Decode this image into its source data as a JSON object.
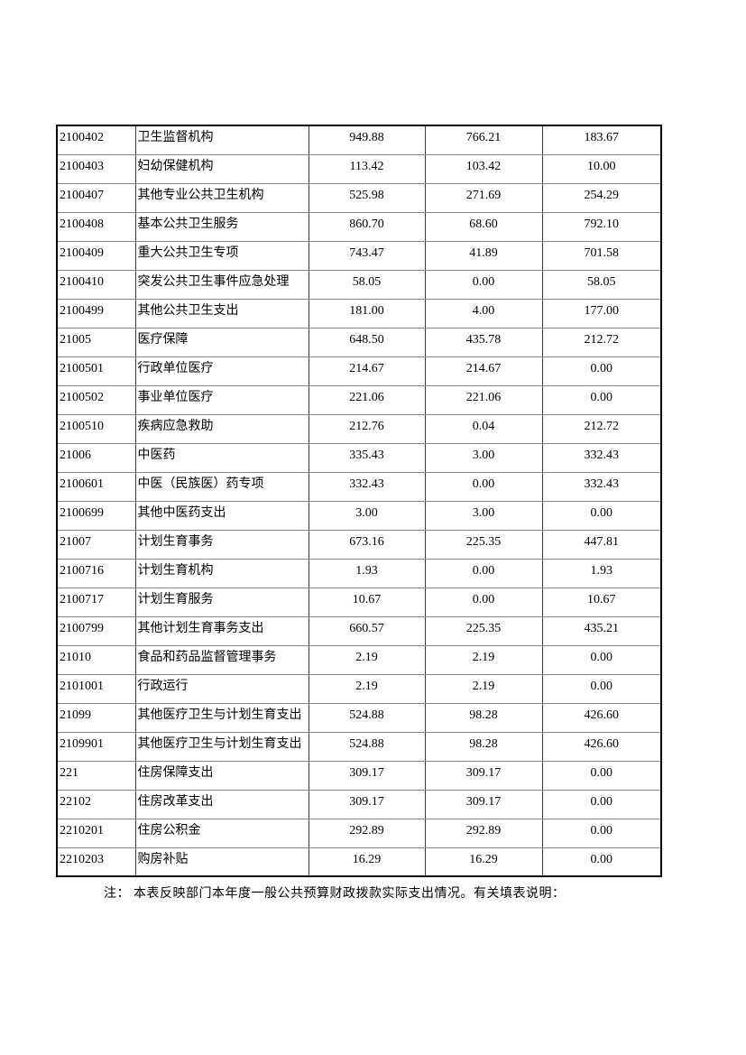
{
  "colors": {
    "text": "#000000",
    "table_border_outer": "#000000",
    "table_border_inner_horizontal": "#8a8a8a",
    "table_border_inner_vertical": "#3a3a3a",
    "page_background": "#ffffff"
  },
  "table": {
    "rows": [
      {
        "code": "2100402",
        "name": "卫生监督机构",
        "values": [
          "949.88",
          "766.21",
          "183.67"
        ]
      },
      {
        "code": "2100403",
        "name": "妇幼保健机构",
        "values": [
          "113.42",
          "103.42",
          "10.00"
        ]
      },
      {
        "code": "2100407",
        "name": "其他专业公共卫生机构",
        "values": [
          "525.98",
          "271.69",
          "254.29"
        ]
      },
      {
        "code": "2100408",
        "name": "基本公共卫生服务",
        "values": [
          "860.70",
          "68.60",
          "792.10"
        ]
      },
      {
        "code": "2100409",
        "name": "重大公共卫生专项",
        "values": [
          "743.47",
          "41.89",
          "701.58"
        ]
      },
      {
        "code": "2100410",
        "name": "突发公共卫生事件应急处理",
        "values": [
          "58.05",
          "0.00",
          "58.05"
        ]
      },
      {
        "code": "2100499",
        "name": "其他公共卫生支出",
        "values": [
          "181.00",
          "4.00",
          "177.00"
        ]
      },
      {
        "code": "21005",
        "name": "医疗保障",
        "values": [
          "648.50",
          "435.78",
          "212.72"
        ]
      },
      {
        "code": "2100501",
        "name": "行政单位医疗",
        "values": [
          "214.67",
          "214.67",
          "0.00"
        ]
      },
      {
        "code": "2100502",
        "name": "事业单位医疗",
        "values": [
          "221.06",
          "221.06",
          "0.00"
        ]
      },
      {
        "code": "2100510",
        "name": "疾病应急救助",
        "values": [
          "212.76",
          "0.04",
          "212.72"
        ]
      },
      {
        "code": "21006",
        "name": "中医药",
        "values": [
          "335.43",
          "3.00",
          "332.43"
        ]
      },
      {
        "code": "2100601",
        "name": "中医（民族医）药专项",
        "values": [
          "332.43",
          "0.00",
          "332.43"
        ]
      },
      {
        "code": "2100699",
        "name": "其他中医药支出",
        "values": [
          "3.00",
          "3.00",
          "0.00"
        ]
      },
      {
        "code": "21007",
        "name": "计划生育事务",
        "values": [
          "673.16",
          "225.35",
          "447.81"
        ]
      },
      {
        "code": "2100716",
        "name": "计划生育机构",
        "values": [
          "1.93",
          "0.00",
          "1.93"
        ]
      },
      {
        "code": "2100717",
        "name": "计划生育服务",
        "values": [
          "10.67",
          "0.00",
          "10.67"
        ]
      },
      {
        "code": "2100799",
        "name": "其他计划生育事务支出",
        "values": [
          "660.57",
          "225.35",
          "435.21"
        ]
      },
      {
        "code": "21010",
        "name": "食品和药品监督管理事务",
        "values": [
          "2.19",
          "2.19",
          "0.00"
        ]
      },
      {
        "code": "2101001",
        "name": "行政运行",
        "values": [
          "2.19",
          "2.19",
          "0.00"
        ]
      },
      {
        "code": "21099",
        "name": "其他医疗卫生与计划生育支出",
        "values": [
          "524.88",
          "98.28",
          "426.60"
        ]
      },
      {
        "code": "2109901",
        "name": "其他医疗卫生与计划生育支出",
        "values": [
          "524.88",
          "98.28",
          "426.60"
        ]
      },
      {
        "code": "221",
        "name": "住房保障支出",
        "values": [
          "309.17",
          "309.17",
          "0.00"
        ]
      },
      {
        "code": "22102",
        "name": "住房改革支出",
        "values": [
          "309.17",
          "309.17",
          "0.00"
        ]
      },
      {
        "code": "2210201",
        "name": "住房公积金",
        "values": [
          "292.89",
          "292.89",
          "0.00"
        ]
      },
      {
        "code": "2210203",
        "name": "购房补贴",
        "values": [
          "16.29",
          "16.29",
          "0.00"
        ]
      }
    ]
  },
  "note": {
    "text": "注： 本表反映部门本年度一般公共预算财政拨款实际支出情况。有关填表说明："
  }
}
